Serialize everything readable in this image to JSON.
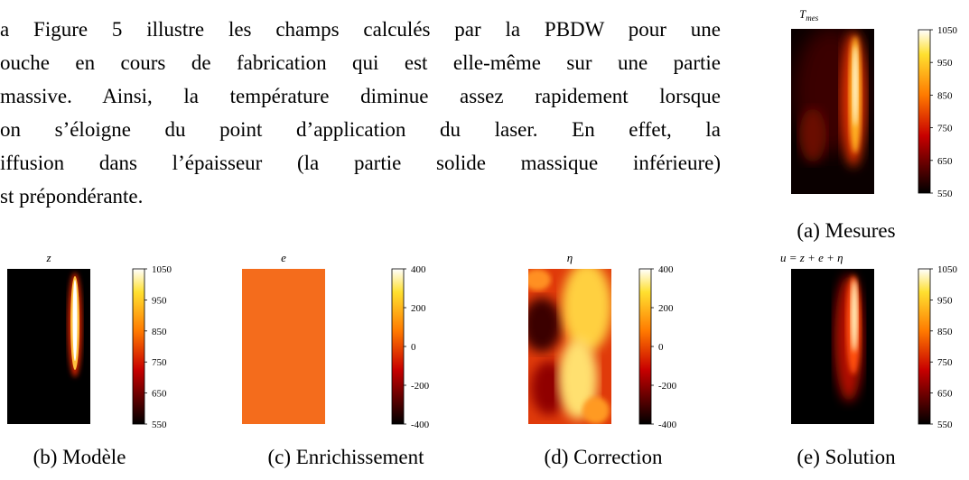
{
  "paragraph": {
    "lines": [
      "a Figure 5 illustre les champs calculés par la PBDW pour une",
      "ouche en cours de fabrication qui est elle-même sur une partie",
      "massive. Ainsi, la température diminue assez rapidement lorsque",
      "on s’éloigne du point d’application du laser. En effet, la",
      "iffusion dans l’épaisseur (la partie solide massique inférieure)",
      "st prépondérante."
    ]
  },
  "panels": [
    {
      "title": {
        "main": "T",
        "sub": "mes"
      },
      "caption": "(a) Mesures",
      "ticks": [
        1050,
        950,
        850,
        750,
        650,
        550
      ]
    },
    {
      "title": {
        "main": "z"
      },
      "caption": "(b) Modèle",
      "ticks": [
        1050,
        950,
        850,
        750,
        650,
        550
      ]
    },
    {
      "title": {
        "main": "e"
      },
      "caption": "(c) Enrichissement",
      "ticks": [
        400,
        200,
        0,
        -200,
        -400
      ]
    },
    {
      "title": {
        "main": "η"
      },
      "caption": "(d) Correction",
      "ticks": [
        400,
        200,
        0,
        -200,
        -400
      ]
    },
    {
      "title": {
        "main": "u = z + e + η"
      },
      "caption": "(e) Solution",
      "ticks": [
        1050,
        950,
        850,
        750,
        650,
        550
      ]
    }
  ]
}
